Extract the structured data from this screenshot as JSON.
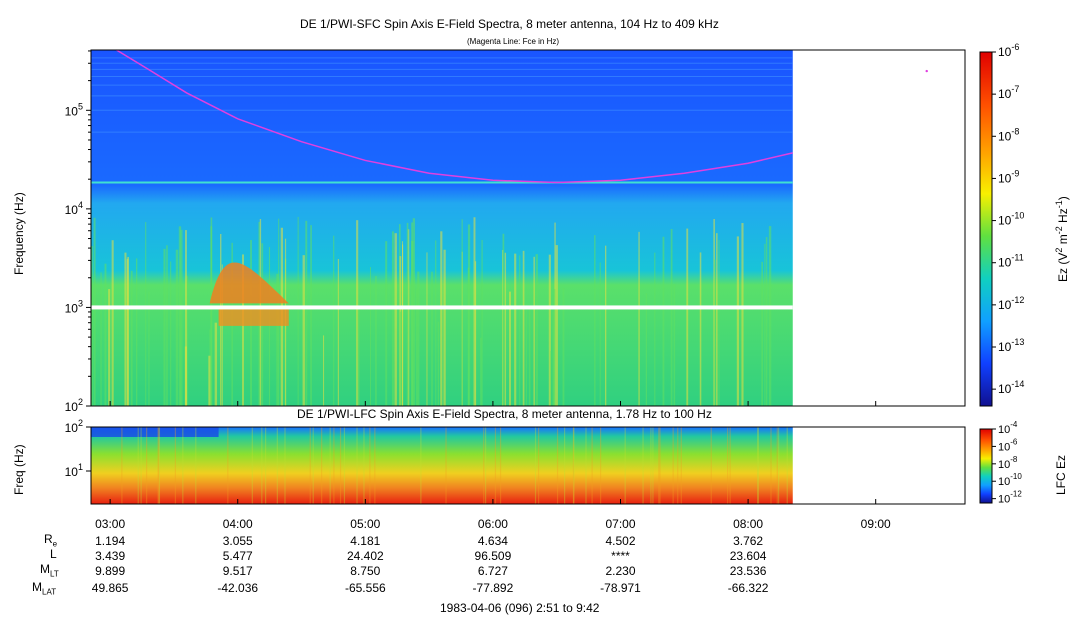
{
  "chart_data": [
    {
      "type": "heatmap",
      "title": "DE 1/PWI-SFC  Spin Axis E-Field Spectra, 8 meter antenna, 104 Hz to 409 kHz",
      "subtitle": "(Magenta Line: Fce in Hz)",
      "ylabel": "Frequency (Hz)",
      "y_scale": "log",
      "ylim": [
        100,
        409000
      ],
      "y_ticks": [
        "10^2",
        "10^3",
        "10^4",
        "10^5"
      ],
      "x_range_hours": [
        2.85,
        9.7
      ],
      "data_end_hours": 8.35,
      "colorbar": {
        "label": "Ez (V^2 m^-2 Hz^-1)",
        "ticks": [
          "10^-6",
          "10^-7",
          "10^-8",
          "10^-9",
          "10^-10",
          "10^-11",
          "10^-12",
          "10^-13",
          "10^-14"
        ],
        "range_log10": [
          -14.4,
          -6
        ]
      },
      "fce_line": {
        "name": "Fce in Hz",
        "color": "#e040e0",
        "points": [
          [
            3.05,
            409000
          ],
          [
            3.3,
            260000
          ],
          [
            3.6,
            150000
          ],
          [
            4.0,
            82000
          ],
          [
            4.5,
            48000
          ],
          [
            5.0,
            31000
          ],
          [
            5.5,
            23000
          ],
          [
            6.0,
            19500
          ],
          [
            6.5,
            18500
          ],
          [
            7.0,
            19500
          ],
          [
            7.5,
            23000
          ],
          [
            8.0,
            29000
          ],
          [
            8.35,
            37000
          ]
        ]
      },
      "gap_frequency_hz": 1000
    },
    {
      "type": "heatmap",
      "title": "DE 1/PWI-LFC  Spin Axis E-Field Spectra, 8 meter antenna, 1.78 Hz to 100 Hz",
      "ylabel": "Freq (Hz)",
      "y_scale": "log",
      "ylim": [
        1.78,
        100
      ],
      "y_ticks": [
        "10^1",
        "10^2"
      ],
      "colorbar": {
        "label": "LFC Ez",
        "ticks": [
          "10^-4",
          "10^-6",
          "10^-8",
          "10^-10",
          "10^-12"
        ],
        "range_log10": [
          -12.5,
          -4
        ]
      }
    }
  ],
  "x_axis": {
    "ticks": [
      {
        "label": "03:00",
        "hour": 3.0
      },
      {
        "label": "04:00",
        "hour": 4.0
      },
      {
        "label": "05:00",
        "hour": 5.0
      },
      {
        "label": "06:00",
        "hour": 6.0
      },
      {
        "label": "07:00",
        "hour": 7.0
      },
      {
        "label": "08:00",
        "hour": 8.0
      },
      {
        "label": "09:00",
        "hour": 9.0
      }
    ]
  },
  "ephemeris": {
    "labels": [
      "R_e",
      "L",
      "M_LT",
      "M_LAT"
    ],
    "rows": [
      [
        "1.194",
        "3.055",
        "4.181",
        "4.634",
        "4.502",
        "3.762"
      ],
      [
        "3.439",
        "5.477",
        "24.402",
        "96.509",
        "****",
        "23.604"
      ],
      [
        "9.899",
        "9.517",
        "8.750",
        "6.727",
        "2.230",
        "23.536"
      ],
      [
        "49.865",
        "-42.036",
        "-65.556",
        "-77.892",
        "-78.971",
        "-66.322"
      ]
    ]
  },
  "footer": "1983-04-06 (096) 2:51 to 9:42"
}
